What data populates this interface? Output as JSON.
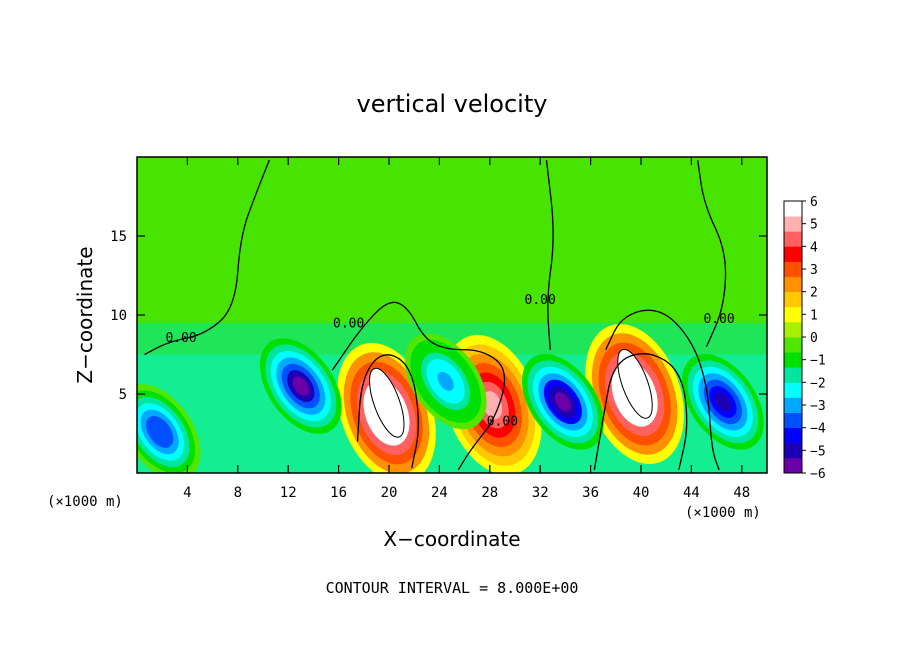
{
  "chart_data": {
    "type": "heatmap",
    "title": "vertical velocity",
    "xlabel": "X−coordinate",
    "ylabel": "Z−coordinate",
    "x_unit_left": "(×1000 m)",
    "x_unit_right": "(×1000 m)",
    "footer": "CONTOUR INTERVAL = 8.000E+00",
    "xlim": [
      0,
      50
    ],
    "ylim": [
      0,
      20
    ],
    "x_ticks": [
      4,
      8,
      12,
      16,
      20,
      24,
      28,
      32,
      36,
      40,
      44,
      48
    ],
    "x_tick_labels": [
      "4",
      "8",
      "12",
      "16",
      "20",
      "24",
      "28",
      "32",
      "36",
      "40",
      "44",
      "48"
    ],
    "y_ticks": [
      5,
      10,
      15
    ],
    "y_tick_labels": [
      "5",
      "10",
      "15"
    ],
    "colorbar": {
      "min": -6,
      "max": 6,
      "tick_labels": [
        "6",
        "5",
        "4",
        "3",
        "2",
        "1",
        "0",
        "−1",
        "−2",
        "−3",
        "−4",
        "−5",
        "−6"
      ],
      "colors": [
        "#6a00a8",
        "#1e00b4",
        "#0000ff",
        "#0050ff",
        "#00a8ff",
        "#00ffff",
        "#00e6a0",
        "#00e000",
        "#50e600",
        "#a8f000",
        "#ffff00",
        "#ffc800",
        "#ff9000",
        "#ff5000",
        "#ff0000",
        "#ff6060",
        "#ffb0b0",
        "#ffffff"
      ]
    },
    "contour_labels": [
      {
        "text": "0.00",
        "x": 3.5,
        "y": 8.3
      },
      {
        "text": "0.00",
        "x": 16.8,
        "y": 9.2
      },
      {
        "text": "0.00",
        "x": 32.0,
        "y": 10.7
      },
      {
        "text": "0.00",
        "x": 29.0,
        "y": 3.0
      },
      {
        "text": "0.00",
        "x": 46.2,
        "y": 9.5
      }
    ],
    "features": [
      {
        "kind": "updraft",
        "x": 19.8,
        "z": 3.8,
        "peak": 8.0
      },
      {
        "kind": "updraft",
        "x": 28.2,
        "z": 4.3,
        "peak": 5.2
      },
      {
        "kind": "updraft",
        "x": 39.5,
        "z": 5.0,
        "peak": 8.0
      },
      {
        "kind": "downdraft",
        "x": 13.0,
        "z": 5.5,
        "peak": -5.8
      },
      {
        "kind": "downdraft",
        "x": 33.8,
        "z": 4.5,
        "peak": -6.0
      },
      {
        "kind": "downdraft",
        "x": 46.5,
        "z": 4.5,
        "peak": -5.5
      },
      {
        "kind": "downdraft",
        "x": 1.8,
        "z": 2.6,
        "peak": -4.2
      },
      {
        "kind": "downdraft",
        "x": 24.5,
        "z": 5.8,
        "peak": -3.0
      }
    ]
  }
}
